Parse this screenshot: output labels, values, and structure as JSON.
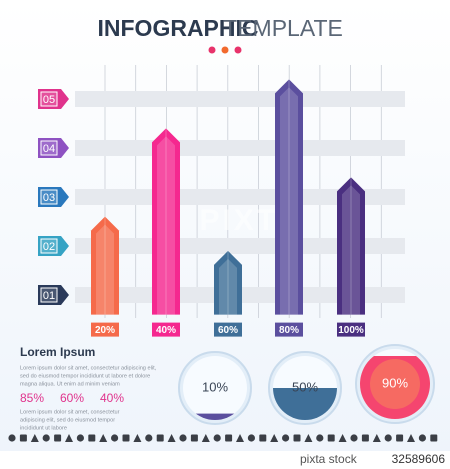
{
  "header": {
    "title_bold": "INFOGRAPHIC",
    "title_light": "TEMPLATE"
  },
  "chart_data": {
    "type": "bar",
    "categories": [
      "20%",
      "40%",
      "60%",
      "80%",
      "100%"
    ],
    "values": [
      2.6,
      4.4,
      1.9,
      5.4,
      3.4
    ],
    "colors": [
      "#f56a4a",
      "#f5288f",
      "#3f6f98",
      "#5b4f9e",
      "#4a2f80"
    ],
    "ylim": [
      0.6,
      5.8
    ],
    "yticks": [
      {
        "value": 1,
        "label": "01"
      },
      {
        "value": 2,
        "label": "02"
      },
      {
        "value": 3,
        "label": "03"
      },
      {
        "value": 4,
        "label": "04"
      },
      {
        "value": 5,
        "label": "05"
      }
    ],
    "tick_colors": [
      "#2a3a5a",
      "#36a3c4",
      "#2a78bd",
      "#8e52c2",
      "#e0338c"
    ],
    "grid": true
  },
  "text_block": {
    "heading": "Lorem Ipsum",
    "paragraph1": [
      "Lorem ipsum dolor sit amet, consectetur adipiscing elit,",
      "sed do eiusmod tempor incididunt ut labore et dolore",
      "magna aliqua. Ut enim ad minim veniam"
    ],
    "stats": [
      "85%",
      "60%",
      "40%"
    ],
    "paragraph2": [
      "Lorem ipsum dolor sit amet, consectetur",
      "adipiscing elit, sed do eiusmod tempor",
      "incididunt ut labore"
    ]
  },
  "gauges": [
    {
      "label": "10%",
      "value": 10,
      "color": "#5b4f9e"
    },
    {
      "label": "50%",
      "value": 50,
      "color": "#3f6f98"
    },
    {
      "label": "90%",
      "value": 90,
      "color": "#f5456f"
    }
  ],
  "watermark": "PIXTA",
  "footer": {
    "brand": "pixta stock",
    "id": "32589606"
  }
}
